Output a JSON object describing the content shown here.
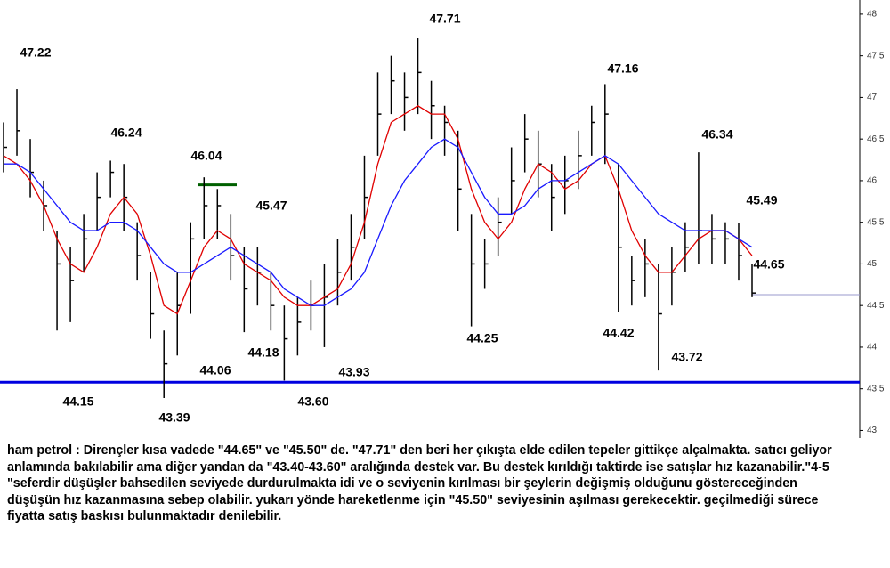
{
  "chart_data": {
    "type": "ohlc",
    "high": [
      46.7,
      47.1,
      46.5,
      46.0,
      45.4,
      45.2,
      45.6,
      46.1,
      46.24,
      46.2,
      45.5,
      44.9,
      44.2,
      44.9,
      45.5,
      46.04,
      45.9,
      45.6,
      45.2,
      45.2,
      44.9,
      44.5,
      44.6,
      44.8,
      45.0,
      45.3,
      45.6,
      46.3,
      47.3,
      47.5,
      47.3,
      47.71,
      47.2,
      46.9,
      46.6,
      45.6,
      45.3,
      45.8,
      46.4,
      46.8,
      46.6,
      46.2,
      46.3,
      46.6,
      46.9,
      47.16,
      46.2,
      45.1,
      45.3,
      45.0,
      45.2,
      45.5,
      46.34,
      45.6,
      45.5,
      45.49,
      45.0
    ],
    "low": [
      46.1,
      46.3,
      45.8,
      45.4,
      44.2,
      44.3,
      44.9,
      45.4,
      45.8,
      45.4,
      44.8,
      44.1,
      43.39,
      43.9,
      44.4,
      45.3,
      45.3,
      44.8,
      44.18,
      44.5,
      44.2,
      43.6,
      43.9,
      44.2,
      44.0,
      44.5,
      44.8,
      45.3,
      46.3,
      46.8,
      46.6,
      46.8,
      46.5,
      46.3,
      45.4,
      44.25,
      44.7,
      45.1,
      45.6,
      46.1,
      45.8,
      45.4,
      45.6,
      45.9,
      46.3,
      46.2,
      44.42,
      44.5,
      44.6,
      43.72,
      44.5,
      44.9,
      45.0,
      45.0,
      45.0,
      44.8,
      44.6
    ],
    "close": [
      46.4,
      46.6,
      46.1,
      45.7,
      45.0,
      44.8,
      45.3,
      45.8,
      46.1,
      45.8,
      45.1,
      44.4,
      43.8,
      44.5,
      45.3,
      45.7,
      45.7,
      45.1,
      44.7,
      44.9,
      44.5,
      44.1,
      44.3,
      44.5,
      44.6,
      44.9,
      45.2,
      45.8,
      46.8,
      47.2,
      47.0,
      47.3,
      46.9,
      46.7,
      45.9,
      45.0,
      45.0,
      45.5,
      46.0,
      46.5,
      46.2,
      45.8,
      46.0,
      46.3,
      46.7,
      46.8,
      45.2,
      44.8,
      45.0,
      44.4,
      44.9,
      45.2,
      45.4,
      45.3,
      45.3,
      45.1,
      44.65
    ],
    "bar_color": "#000000",
    "series": [
      {
        "color": "#e00000",
        "values": [
          46.3,
          46.2,
          46.0,
          45.7,
          45.3,
          45.0,
          44.9,
          45.2,
          45.6,
          45.8,
          45.6,
          45.1,
          44.5,
          44.4,
          44.8,
          45.2,
          45.4,
          45.3,
          45.0,
          44.9,
          44.8,
          44.6,
          44.5,
          44.5,
          44.6,
          44.7,
          45.0,
          45.5,
          46.2,
          46.7,
          46.8,
          46.9,
          46.8,
          46.8,
          46.5,
          45.9,
          45.5,
          45.3,
          45.5,
          45.9,
          46.2,
          46.1,
          45.9,
          46.0,
          46.2,
          46.3,
          45.9,
          45.4,
          45.1,
          44.9,
          44.9,
          45.1,
          45.3,
          45.4,
          45.4,
          45.3,
          45.1
        ]
      },
      {
        "color": "#1a1aff",
        "values": [
          46.2,
          46.2,
          46.1,
          45.9,
          45.7,
          45.5,
          45.4,
          45.4,
          45.5,
          45.5,
          45.4,
          45.2,
          45.0,
          44.9,
          44.9,
          45.0,
          45.1,
          45.2,
          45.1,
          45.0,
          44.9,
          44.7,
          44.6,
          44.5,
          44.5,
          44.6,
          44.7,
          44.9,
          45.3,
          45.7,
          46.0,
          46.2,
          46.4,
          46.5,
          46.4,
          46.1,
          45.8,
          45.6,
          45.6,
          45.7,
          45.9,
          46.0,
          46.0,
          46.1,
          46.2,
          46.3,
          46.2,
          46.0,
          45.8,
          45.6,
          45.5,
          45.4,
          45.4,
          45.4,
          45.4,
          45.3,
          45.2
        ]
      }
    ],
    "levels": [
      {
        "value": 43.58,
        "color": "#0000e0"
      },
      {
        "value": 45.95,
        "color": "#006000"
      },
      {
        "value": 44.63,
        "color": "#9999cc"
      }
    ],
    "annotations": [
      "47.22",
      "46.24",
      "46.04",
      "45.47",
      "44.15",
      "43.39",
      "44.06",
      "44.18",
      "43.60",
      "43.93",
      "47.71",
      "44.25",
      "47.16",
      "44.42",
      "43.72",
      "46.34",
      "45.49",
      "44.65"
    ],
    "ylim": [
      42.93,
      48.17
    ],
    "yticks": [
      {
        "value": 43,
        "label": "43,"
      },
      {
        "value": 43.5,
        "label": "43,5"
      },
      {
        "value": 44,
        "label": "44,"
      },
      {
        "value": 44.5,
        "label": "44,5"
      },
      {
        "value": 45,
        "label": "45,"
      },
      {
        "value": 45.5,
        "label": "45,5"
      },
      {
        "value": 46,
        "label": "46,"
      },
      {
        "value": 46.5,
        "label": "46,5"
      },
      {
        "value": 47,
        "label": "47,"
      },
      {
        "value": 47.5,
        "label": "47,5"
      },
      {
        "value": 48,
        "label": "48,"
      }
    ]
  },
  "commentary": "ham petrol : Dirençler kısa vadede \"44.65\" ve \"45.50\" de. \"47.71\" den beri her çıkışta elde edilen tepeler gittikçe alçalmakta. satıcı geliyor anlamında bakılabilir ama diğer yandan da \"43.40-43.60\" aralığında destek var. Bu destek kırıldığı taktirde ise satışlar hız kazanabilir.\"4-5 \"seferdir düşüşler bahsedilen seviyede durdurulmakta idi ve o seviyenin kırılması bir şeylerin değişmiş olduğunu göstereceğinden düşüşün hız kazanmasına sebep olabilir. yukarı yönde hareketlenme için \"45.50\" seviyesinin aşılması gerekecektir. geçilmediği sürece fiyatta satış baskısı bulunmaktadır denilebilir."
}
